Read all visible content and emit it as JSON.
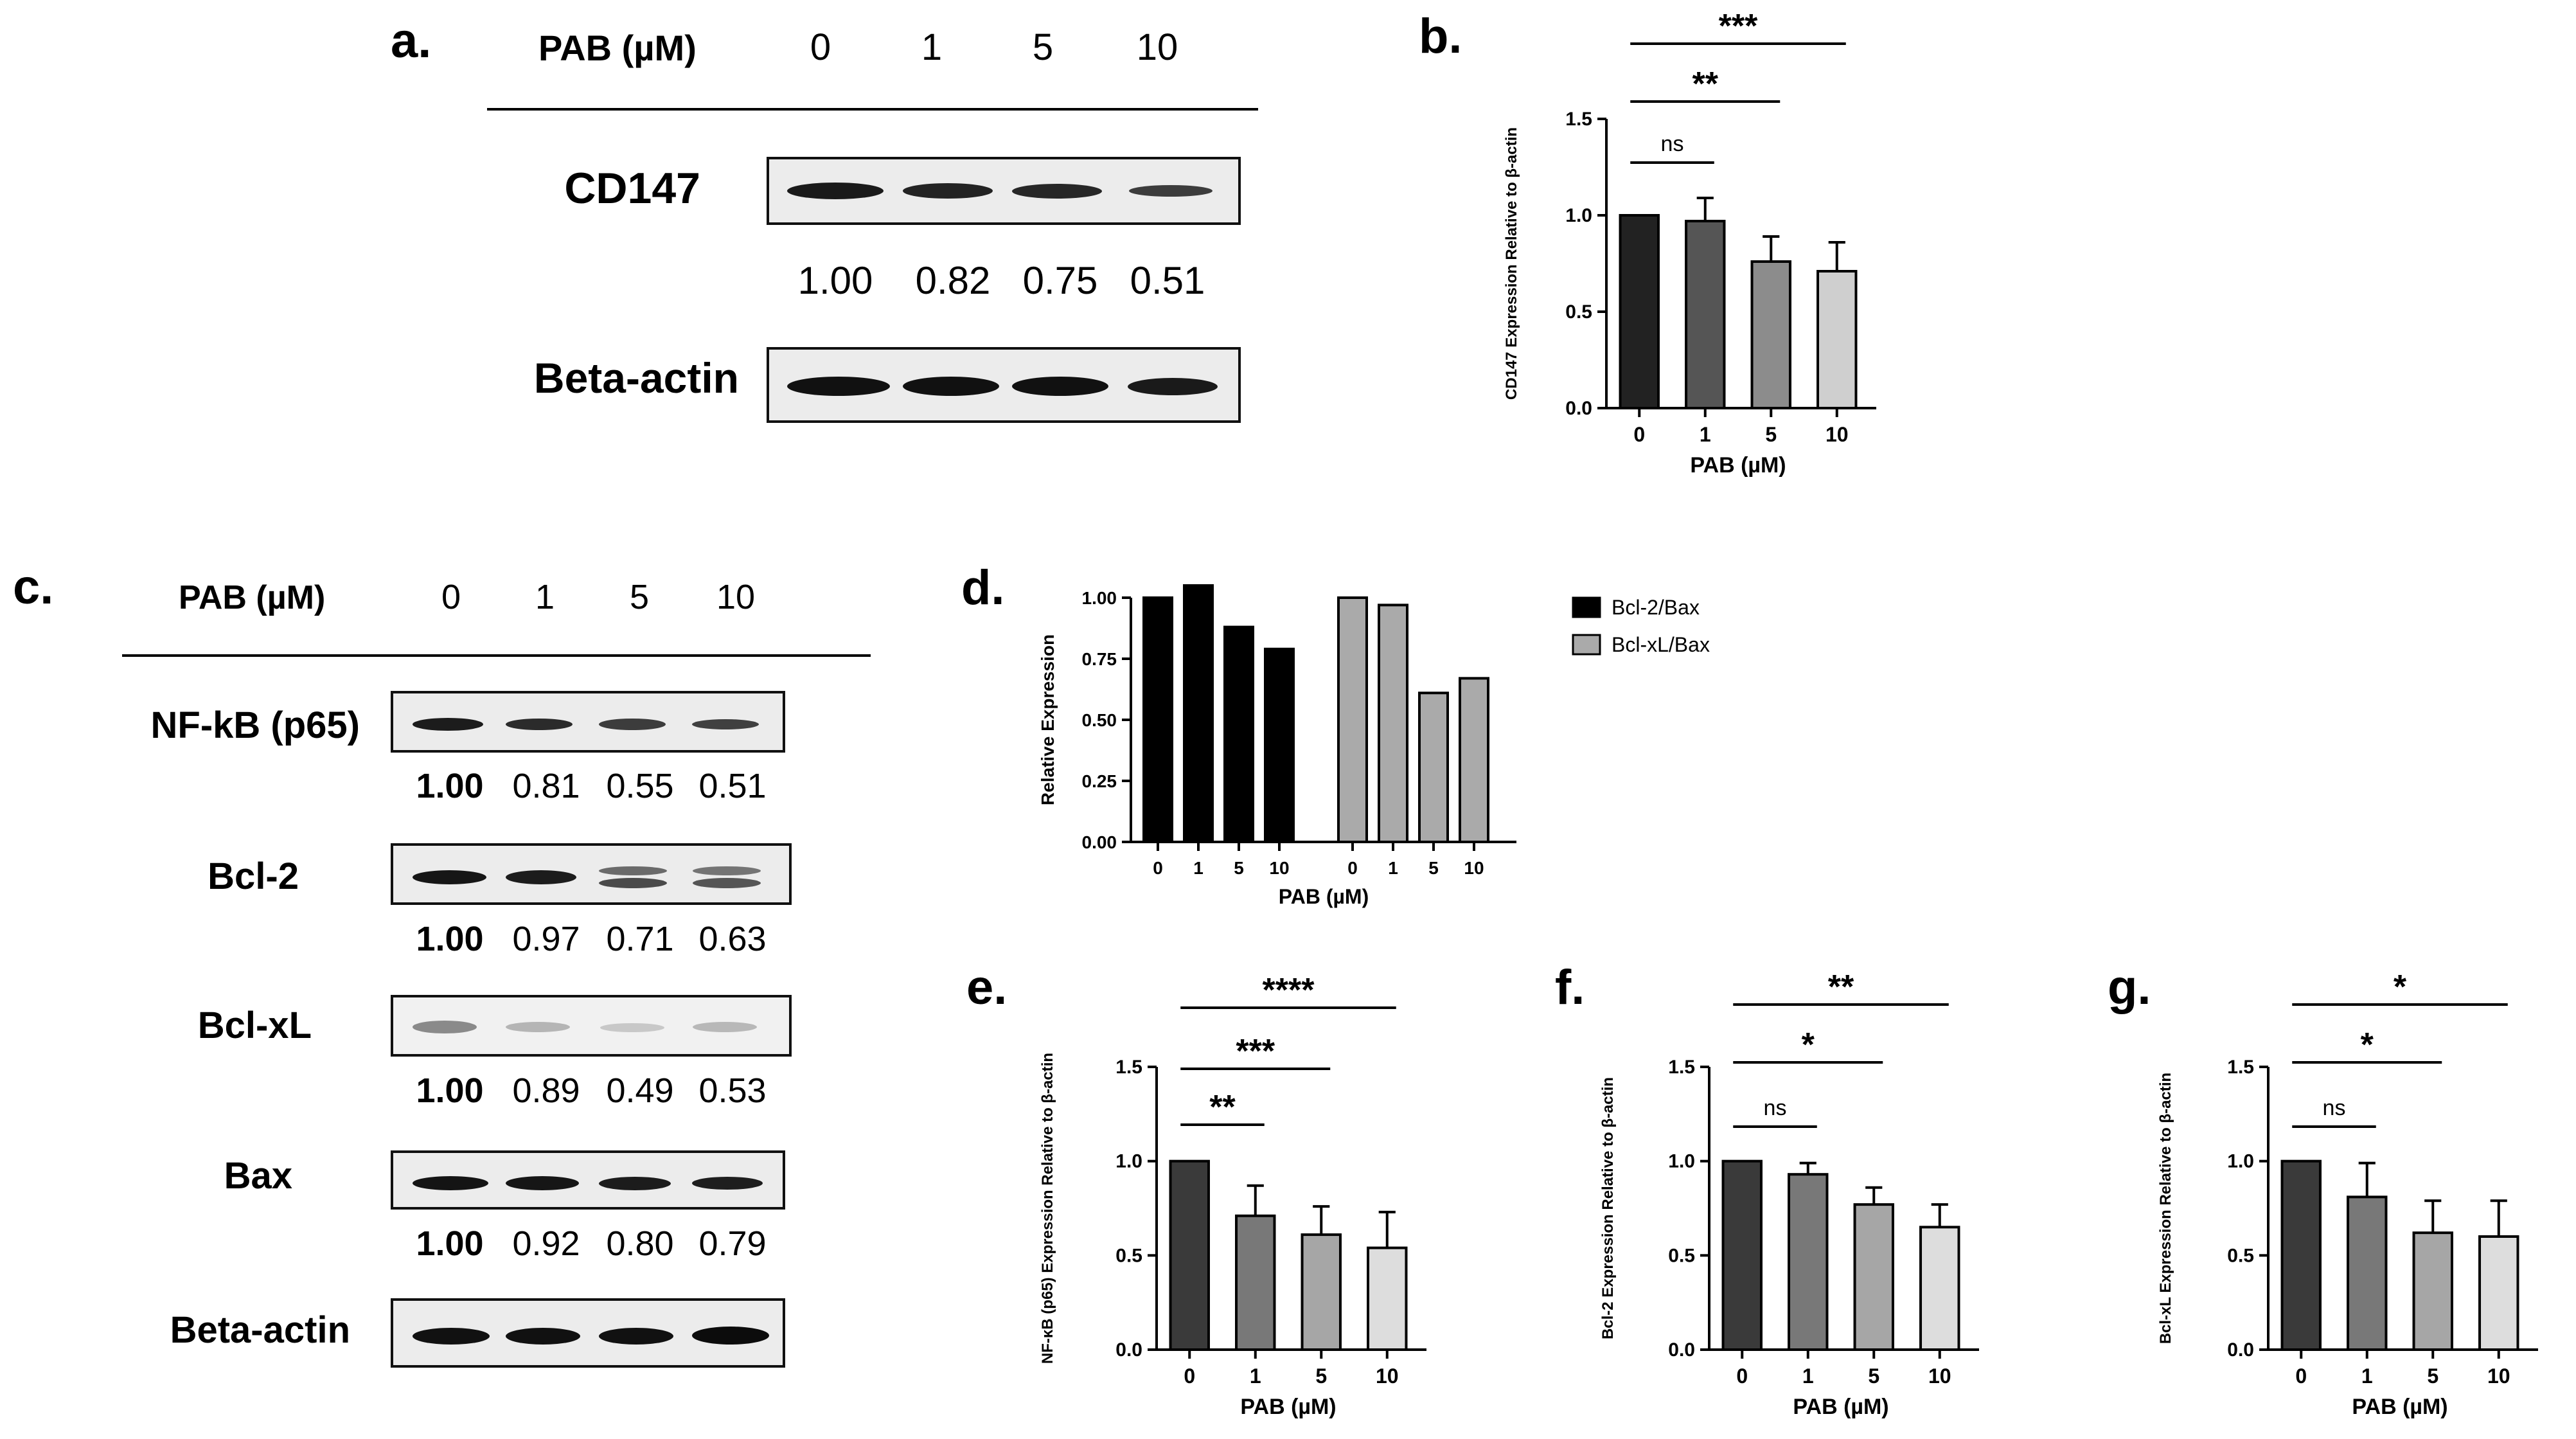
{
  "panel_a": {
    "label": "a.",
    "header": "PAB (µM)",
    "concentrations": [
      "0",
      "1",
      "5",
      "10"
    ],
    "rows": [
      {
        "protein": "CD147",
        "values": [
          "1.00",
          "0.82",
          "0.75",
          "0.51"
        ]
      },
      {
        "protein": "Beta-actin"
      }
    ]
  },
  "panel_c": {
    "label": "c.",
    "header": "PAB (µM)",
    "concentrations": [
      "0",
      "1",
      "5",
      "10"
    ],
    "rows": [
      {
        "protein": "NF-kB (p65)",
        "values": [
          "1.00",
          "0.81",
          "0.55",
          "0.51"
        ]
      },
      {
        "protein": "Bcl-2",
        "values": [
          "1.00",
          "0.97",
          "0.71",
          "0.63"
        ]
      },
      {
        "protein": "Bcl-xL",
        "values": [
          "1.00",
          "0.89",
          "0.49",
          "0.53"
        ]
      },
      {
        "protein": "Bax",
        "values": [
          "1.00",
          "0.92",
          "0.80",
          "0.79"
        ]
      },
      {
        "protein": "Beta-actin"
      }
    ]
  },
  "colors": {
    "bar_0": "#222222",
    "bar_1": "#555555",
    "bar_5": "#8c8c8c",
    "bar_10": "#cfcfcf",
    "bar_0_e": "#3a3a3a",
    "bar_1_e": "#787878",
    "bar_5_e": "#a6a6a6",
    "bar_10_e": "#dddddd",
    "series_bcl2": "#000000",
    "series_bclxl": "#aaaaaa"
  },
  "chart_data": [
    {
      "id": "b",
      "label": "b.",
      "type": "bar",
      "categories": [
        "0",
        "1",
        "5",
        "10"
      ],
      "values": [
        1.0,
        0.97,
        0.76,
        0.71
      ],
      "errors": [
        0,
        0.12,
        0.13,
        0.15
      ],
      "xlabel": "PAB (µM)",
      "ylabel": "CD147 Expression Relative to β-actin",
      "ylim": [
        0,
        1.5
      ],
      "yticks": [
        "0.0",
        "0.5",
        "1.0",
        "1.5"
      ],
      "significance": [
        {
          "from": 0,
          "to": 1,
          "text": "ns"
        },
        {
          "from": 0,
          "to": 2,
          "text": "**"
        },
        {
          "from": 0,
          "to": 3,
          "text": "***"
        }
      ]
    },
    {
      "id": "d",
      "label": "d.",
      "type": "bar",
      "categories": [
        "0",
        "1",
        "5",
        "10"
      ],
      "series": [
        {
          "name": "Bcl-2/Bax",
          "values": [
            1.0,
            1.05,
            0.88,
            0.79
          ]
        },
        {
          "name": "Bcl-xL/Bax",
          "values": [
            1.0,
            0.97,
            0.61,
            0.67
          ]
        }
      ],
      "xlabel": "PAB (µM)",
      "ylabel": "Relative Expression",
      "ylim": [
        0,
        1.0
      ],
      "yticks": [
        "0.00",
        "0.25",
        "0.50",
        "0.75",
        "1.00"
      ],
      "legend": "top-right"
    },
    {
      "id": "e",
      "label": "e.",
      "type": "bar",
      "categories": [
        "0",
        "1",
        "5",
        "10"
      ],
      "values": [
        1.0,
        0.71,
        0.61,
        0.54
      ],
      "errors": [
        0,
        0.16,
        0.15,
        0.19
      ],
      "xlabel": "PAB (µM)",
      "ylabel": "NF-κB (p65) Expression Relative to β-actin",
      "ylim": [
        0,
        1.5
      ],
      "yticks": [
        "0.0",
        "0.5",
        "1.0",
        "1.5"
      ],
      "significance": [
        {
          "from": 0,
          "to": 1,
          "text": "**"
        },
        {
          "from": 0,
          "to": 2,
          "text": "***"
        },
        {
          "from": 0,
          "to": 3,
          "text": "****"
        }
      ]
    },
    {
      "id": "f",
      "label": "f.",
      "type": "bar",
      "categories": [
        "0",
        "1",
        "5",
        "10"
      ],
      "values": [
        1.0,
        0.93,
        0.77,
        0.65
      ],
      "errors": [
        0,
        0.06,
        0.09,
        0.12
      ],
      "xlabel": "PAB (µM)",
      "ylabel": "Bcl-2 Expression Relative to β-actin",
      "ylim": [
        0,
        1.5
      ],
      "yticks": [
        "0.0",
        "0.5",
        "1.0",
        "1.5"
      ],
      "significance": [
        {
          "from": 0,
          "to": 1,
          "text": "ns"
        },
        {
          "from": 0,
          "to": 2,
          "text": "*"
        },
        {
          "from": 0,
          "to": 3,
          "text": "**"
        }
      ]
    },
    {
      "id": "g",
      "label": "g.",
      "type": "bar",
      "categories": [
        "0",
        "1",
        "5",
        "10"
      ],
      "values": [
        1.0,
        0.81,
        0.62,
        0.6
      ],
      "errors": [
        0,
        0.18,
        0.17,
        0.19
      ],
      "xlabel": "PAB (µM)",
      "ylabel": "Bcl-xL Expression Relative to β-actin",
      "ylim": [
        0,
        1.5
      ],
      "yticks": [
        "0.0",
        "0.5",
        "1.0",
        "1.5"
      ],
      "significance": [
        {
          "from": 0,
          "to": 1,
          "text": "ns"
        },
        {
          "from": 0,
          "to": 2,
          "text": "*"
        },
        {
          "from": 0,
          "to": 3,
          "text": "*"
        }
      ]
    }
  ]
}
